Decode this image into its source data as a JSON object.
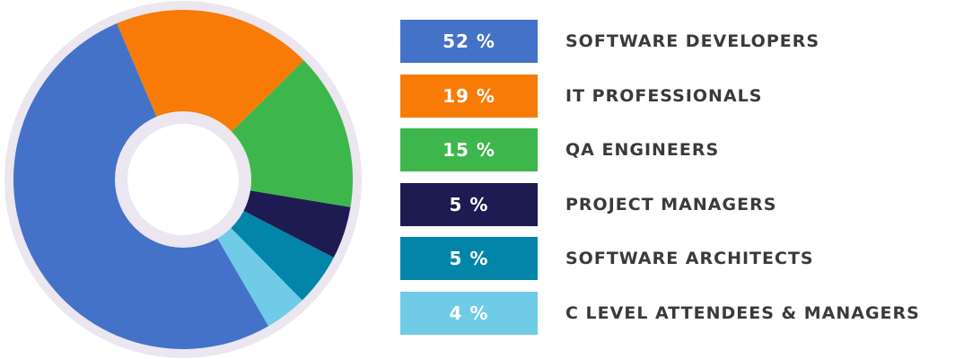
{
  "chart_data": {
    "type": "pie",
    "categories": [
      "SOFTWARE DEVELOPERS",
      "IT PROFESSIONALS",
      "QA ENGINEERS",
      "PROJECT MANAGERS",
      "SOFTWARE ARCHITECTS",
      "C LEVEL ATTENDEES & MANAGERS"
    ],
    "values": [
      52,
      19,
      15,
      5,
      5,
      4
    ],
    "value_labels": [
      "52 %",
      "19 %",
      "15 %",
      "5 %",
      "5 %",
      "4 %"
    ],
    "colors": [
      "#4472c9",
      "#f77b06",
      "#3db74b",
      "#1e1b52",
      "#0385a9",
      "#6fcbe6"
    ],
    "legend_position": "right",
    "donut": true
  },
  "ring_color": "#ebe6ef"
}
